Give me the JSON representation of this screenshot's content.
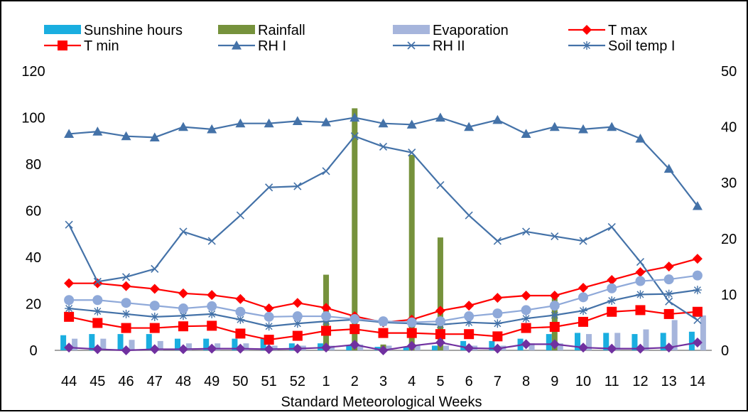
{
  "chart_data": {
    "type": "bar+line",
    "categories": [
      "44",
      "45",
      "46",
      "47",
      "48",
      "49",
      "50",
      "51",
      "52",
      "1",
      "2",
      "3",
      "4",
      "5",
      "6",
      "7",
      "8",
      "9",
      "10",
      "11",
      "12",
      "13",
      "14"
    ],
    "xlabel": "Standard Meteorological Weeks",
    "y_left": {
      "min": 0,
      "max": 120,
      "ticks": [
        "0",
        "20",
        "40",
        "60",
        "80",
        "100",
        "120"
      ]
    },
    "y_right": {
      "min": 0,
      "max": 50,
      "ticks": [
        "0",
        "10",
        "20",
        "30",
        "40",
        "50"
      ]
    },
    "grid": false,
    "legend_position": "top",
    "legend_rows": [
      [
        "Sunshine hours",
        "Rainfall",
        "Evaporation",
        "T max"
      ],
      [
        "T min",
        "RH I",
        "RH II",
        "Soil temp I"
      ]
    ],
    "series": [
      {
        "name": "Sunshine hours",
        "kind": "bar",
        "axis": "left",
        "color": "#1aaee0",
        "values": [
          6.5,
          7,
          7,
          7,
          5,
          5,
          5,
          5,
          3,
          3,
          2,
          1.5,
          1.5,
          2,
          4,
          4,
          5,
          7,
          7.5,
          7.5,
          7,
          7.5,
          8
        ]
      },
      {
        "name": "Rainfall",
        "kind": "bar",
        "axis": "left",
        "color": "#76923c",
        "values": [
          0,
          0,
          0,
          0,
          0,
          0,
          0,
          0,
          2,
          32.5,
          104,
          2.5,
          84,
          48.5,
          0,
          0,
          0,
          23,
          0,
          0,
          0,
          0,
          0
        ]
      },
      {
        "name": "Evaporation",
        "kind": "bar",
        "axis": "left",
        "color": "#a6b5dc",
        "values": [
          5,
          5,
          4.5,
          4,
          3,
          3,
          3,
          2,
          2,
          2,
          2.5,
          2,
          2,
          2,
          2,
          2,
          3,
          3,
          7,
          7.5,
          9,
          13,
          15
        ]
      },
      {
        "name": "T max",
        "kind": "line",
        "axis": "right",
        "color": "#ff0000",
        "marker": "diamond",
        "values": [
          12,
          12,
          11.5,
          11,
          10.2,
          9.9,
          9.2,
          7.5,
          8.5,
          7.6,
          6.1,
          5,
          5.5,
          7.1,
          8,
          9.4,
          9.8,
          9.8,
          11.2,
          12.6,
          14,
          15,
          16.4
        ]
      },
      {
        "name": "T min",
        "kind": "line",
        "axis": "right",
        "color": "#ff0000",
        "marker": "square",
        "values": [
          6,
          4.9,
          4,
          4,
          4.3,
          4.4,
          3,
          1.9,
          2.6,
          3.5,
          3.8,
          3.1,
          3.1,
          2.9,
          2.9,
          2.5,
          4,
          4.2,
          5.1,
          6.9,
          7.2,
          6.5,
          6.9
        ]
      },
      {
        "name": "RH I",
        "kind": "line",
        "axis": "left",
        "color": "#4472a8",
        "marker": "triangle",
        "values": [
          93,
          94,
          92,
          91.5,
          96,
          95,
          97.5,
          97.5,
          98.5,
          98,
          100,
          97.5,
          97,
          100,
          96,
          99,
          93,
          96,
          95,
          96,
          91,
          78,
          62
        ]
      },
      {
        "name": "RH II",
        "kind": "line",
        "axis": "left",
        "color": "#4472a8",
        "marker": "x",
        "values": [
          54,
          29.5,
          31.5,
          35,
          51,
          47,
          58,
          70,
          70.5,
          77,
          92,
          87.5,
          85,
          71,
          58,
          47,
          51,
          49,
          47,
          53,
          38,
          21,
          13
        ]
      },
      {
        "name": "Soil temp I",
        "kind": "line",
        "axis": "right",
        "color": "#4472a8",
        "marker": "star",
        "values": [
          7.5,
          7,
          6.5,
          6,
          6.2,
          6.5,
          5.5,
          4.3,
          4.8,
          5.2,
          5.5,
          5,
          4.8,
          4.6,
          5,
          4.8,
          5.7,
          6.3,
          7.1,
          8.9,
          10,
          10.1,
          10.8
        ]
      },
      {
        "name": "",
        "kind": "line",
        "axis": "right",
        "color": "#8fa9d9",
        "marker": "circle",
        "values": [
          9,
          9,
          8.5,
          8,
          7.5,
          7.9,
          6.9,
          6,
          6.1,
          6.1,
          5.6,
          5.2,
          5,
          5.2,
          6.1,
          6.6,
          7.2,
          8,
          9.5,
          11.1,
          12.4,
          12.7,
          13.4
        ]
      },
      {
        "name": "",
        "kind": "line",
        "axis": "right",
        "color": "#7030a0",
        "marker": "diamond",
        "values": [
          0.5,
          0.2,
          0,
          0.2,
          0.2,
          0.3,
          0.3,
          0.2,
          0.3,
          0.5,
          1,
          0,
          0.8,
          1.4,
          0.4,
          0.3,
          1.1,
          1.1,
          0.5,
          0.3,
          0.3,
          0.5,
          1.4
        ]
      }
    ]
  }
}
